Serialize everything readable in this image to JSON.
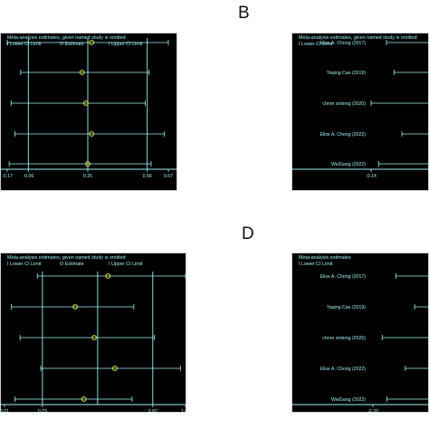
{
  "panel_letters": [
    "B",
    "D"
  ],
  "colors": {
    "plot_bg": "#000000",
    "frame": "#ffffff",
    "line": "#9ff0f0",
    "text": "#9ff0f0",
    "estimate": "#e8e83a",
    "page_bg": "#ffffff"
  },
  "chart_data": [
    {
      "type": "forest",
      "title": "Meta-analysis estimates, given named study is omitted",
      "legend": [
        "Lower CI Limit",
        "Estimate",
        "Upper CI Limit"
      ],
      "legend_placement": "top",
      "study_labels": [],
      "ticks": [
        "-0.17",
        "-0.06",
        "0.25",
        "0.56",
        "0.67"
      ],
      "reference_values": [
        -0.06,
        0.25,
        0.56
      ],
      "xlim": [
        -0.17,
        0.67
      ],
      "rows": [
        {
          "lower": -0.17,
          "estimate": 0.27,
          "upper": 0.67
        },
        {
          "lower": -0.1,
          "estimate": 0.22,
          "upper": 0.57
        },
        {
          "lower": -0.15,
          "estimate": 0.24,
          "upper": 0.55
        },
        {
          "lower": -0.13,
          "estimate": 0.27,
          "upper": 0.65
        },
        {
          "lower": -0.16,
          "estimate": 0.25,
          "upper": 0.58
        }
      ]
    },
    {
      "type": "forest",
      "title": "Meta-analysis estimates, given named study is omitted",
      "legend": [
        "Lower CI Limit"
      ],
      "legend_placement": "top",
      "study_labels": [
        "Elise A. Chong (2017)",
        "Yaqing Cao (2019)",
        "chnre xinteng (2020)",
        "Elise A. Chong (2022)",
        "WeiGang (2022)"
      ],
      "ticks": [
        "-0.14",
        "-0.01"
      ],
      "reference_values": [
        -0.01
      ],
      "xlim": [
        -0.14,
        0.13
      ],
      "rows": [
        {
          "lower": -0.12
        },
        {
          "lower": -0.11
        },
        {
          "lower": -0.14
        },
        {
          "lower": -0.1
        },
        {
          "lower": -0.13
        }
      ]
    },
    {
      "type": "forest",
      "title": "Meta-analysis estimates, given named study is omitted",
      "legend": [
        "Lower CI Limit",
        "Estimate",
        "Upper CI Limit"
      ],
      "legend_placement": "top",
      "study_labels": [],
      "ticks": [
        "0.01",
        "0.23",
        "0.87",
        "1.06"
      ],
      "reference_values": [
        0.23,
        0.55,
        0.87
      ],
      "xlim": [
        0.01,
        1.06
      ],
      "rows": [
        {
          "lower": 0.2,
          "estimate": 0.61,
          "upper": 1.06
        },
        {
          "lower": 0.05,
          "estimate": 0.42,
          "upper": 0.76
        },
        {
          "lower": 0.1,
          "estimate": 0.53,
          "upper": 0.88
        },
        {
          "lower": 0.22,
          "estimate": 0.65,
          "upper": 1.03
        },
        {
          "lower": 0.07,
          "estimate": 0.47,
          "upper": 0.75
        }
      ]
    },
    {
      "type": "forest",
      "title": "Meta-analysis estimates",
      "legend": [
        "Lower CI Limit"
      ],
      "legend_placement": "top",
      "study_labels": [
        "Elise A. Chong (2017)",
        "Yaqing Cao (2019)",
        "chnre xinteng (2020)",
        "Elise A. Chong (2022)",
        "WeiGang (2022)"
      ],
      "ticks": [
        "-0.33",
        "-0.12"
      ],
      "reference_values": [
        -0.12
      ],
      "xlim": [
        -0.33,
        0.1
      ],
      "rows": [
        {
          "lower": -0.28
        },
        {
          "lower": -0.24
        },
        {
          "lower": -0.31
        },
        {
          "lower": -0.26
        },
        {
          "lower": -0.3
        }
      ]
    }
  ]
}
